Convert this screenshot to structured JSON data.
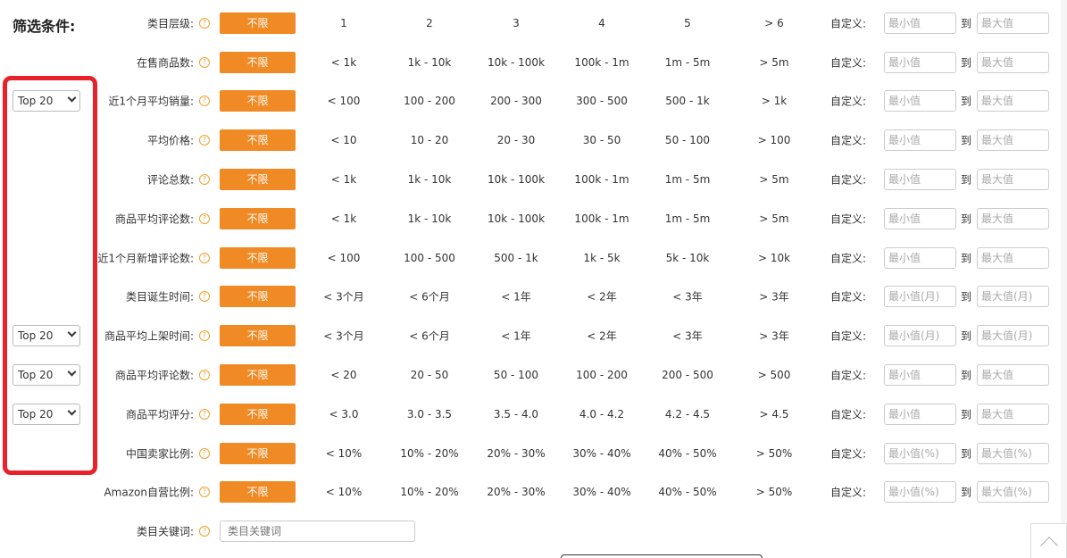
{
  "title": "筛选条件:",
  "any_label": "不限",
  "custom_label": "自定义:",
  "to_label": "到",
  "help_glyph": "?",
  "top_select_value": "Top 20",
  "rows": [
    {
      "label": "类目层级:",
      "opts": [
        "1",
        "2",
        "3",
        "4",
        "5",
        "> 6"
      ],
      "min": "最小值",
      "max": "最大值",
      "select": false
    },
    {
      "label": "在售商品数:",
      "opts": [
        "< 1k",
        "1k - 10k",
        "10k - 100k",
        "100k - 1m",
        "1m - 5m",
        "> 5m"
      ],
      "min": "最小值",
      "max": "最大值",
      "select": false
    },
    {
      "label": "近1个月平均销量:",
      "opts": [
        "< 100",
        "100 - 200",
        "200 - 300",
        "300 - 500",
        "500 - 1k",
        "> 1k"
      ],
      "min": "最小值",
      "max": "最大值",
      "select": true
    },
    {
      "label": "平均价格:",
      "opts": [
        "< 10",
        "10 - 20",
        "20 - 30",
        "30 - 50",
        "50 - 100",
        "> 100"
      ],
      "min": "最小值",
      "max": "最大值",
      "select": false
    },
    {
      "label": "评论总数:",
      "opts": [
        "< 1k",
        "1k - 10k",
        "10k - 100k",
        "100k - 1m",
        "1m - 5m",
        "> 5m"
      ],
      "min": "最小值",
      "max": "最大值",
      "select": false
    },
    {
      "label": "商品平均评论数:",
      "opts": [
        "< 1k",
        "1k - 10k",
        "10k - 100k",
        "100k - 1m",
        "1m - 5m",
        "> 5m"
      ],
      "min": "最小值",
      "max": "最大值",
      "select": false
    },
    {
      "label": "近1个月新增评论数:",
      "opts": [
        "< 100",
        "100 - 500",
        "500 - 1k",
        "1k - 5k",
        "5k - 10k",
        "> 10k"
      ],
      "min": "最小值",
      "max": "最大值",
      "select": false
    },
    {
      "label": "类目诞生时间:",
      "opts": [
        "< 3个月",
        "< 6个月",
        "< 1年",
        "< 2年",
        "< 3年",
        "> 3年"
      ],
      "min": "最小值(月)",
      "max": "最大值(月)",
      "select": false
    },
    {
      "label": "商品平均上架时间:",
      "opts": [
        "< 3个月",
        "< 6个月",
        "< 1年",
        "< 2年",
        "< 3年",
        "> 3年"
      ],
      "min": "最小值(月)",
      "max": "最大值(月)",
      "select": true
    },
    {
      "label": "商品平均评论数:",
      "opts": [
        "< 20",
        "20 - 50",
        "50 - 100",
        "100 - 200",
        "200 - 500",
        "> 500"
      ],
      "min": "最小值",
      "max": "最大值",
      "select": true
    },
    {
      "label": "商品平均评分:",
      "opts": [
        "< 3.0",
        "3.0 - 3.5",
        "3.5 - 4.0",
        "4.0 - 4.2",
        "4.2 - 4.5",
        "> 4.5"
      ],
      "min": "最小值",
      "max": "最大值",
      "select": true
    },
    {
      "label": "中国卖家比例:",
      "opts": [
        "< 10%",
        "10% - 20%",
        "20% - 30%",
        "30% - 40%",
        "40% - 50%",
        "> 50%"
      ],
      "min": "最小值(%)",
      "max": "最大值(%)",
      "select": false
    },
    {
      "label": "Amazon自营比例:",
      "opts": [
        "< 10%",
        "10% - 20%",
        "20% - 30%",
        "30% - 40%",
        "40% - 50%",
        "> 50%"
      ],
      "min": "最小值(%)",
      "max": "最大值(%)",
      "select": false
    }
  ],
  "keyword": {
    "label": "类目关键词:",
    "placeholder": "类目关键词"
  },
  "accent_color": "#f08a24",
  "highlight_color": "#e8222a"
}
